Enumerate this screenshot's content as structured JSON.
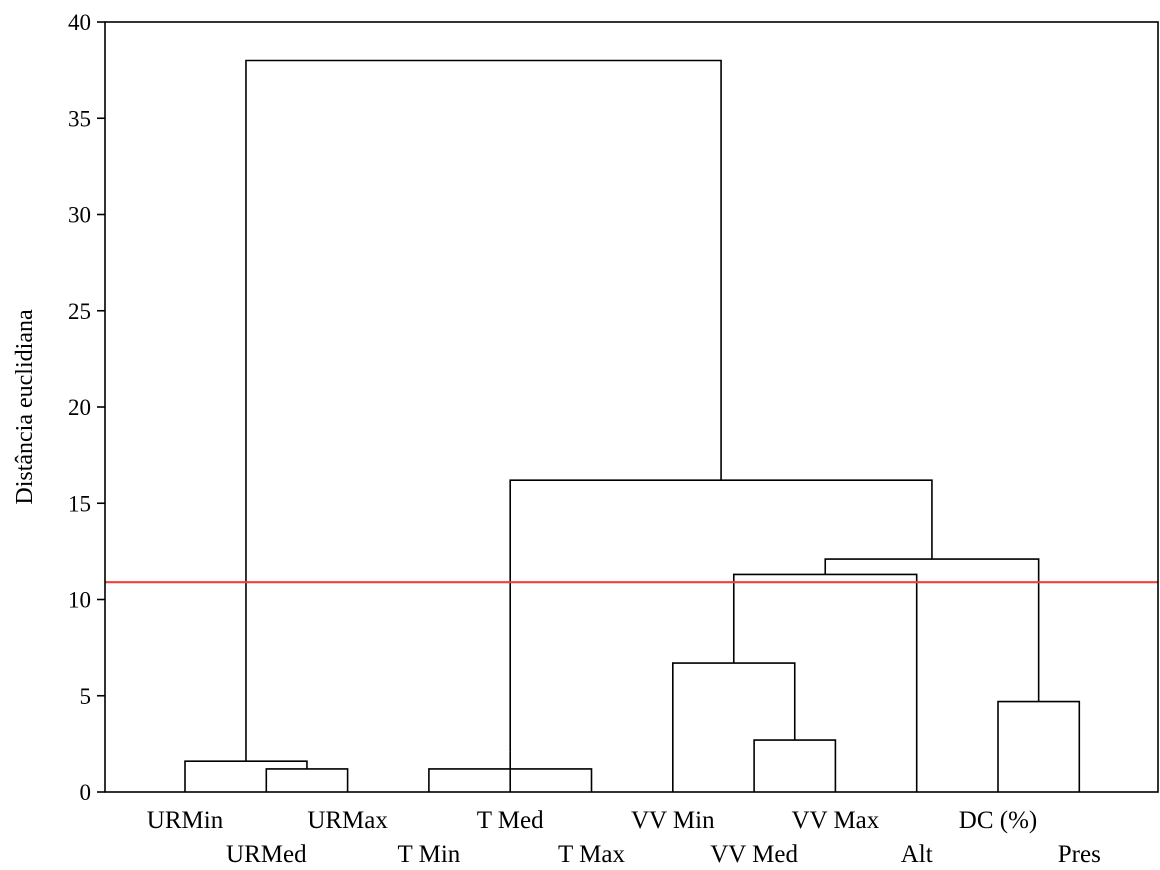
{
  "chart_data": {
    "type": "dendrogram",
    "ylabel": "Distância euclidiana",
    "ylim": [
      0,
      40
    ],
    "yticks": [
      0,
      5,
      10,
      15,
      20,
      25,
      30,
      35,
      40
    ],
    "leaves": [
      {
        "label": "URMin",
        "row": 0
      },
      {
        "label": "URMed",
        "row": 1
      },
      {
        "label": "URMax",
        "row": 0
      },
      {
        "label": "T Min",
        "row": 1
      },
      {
        "label": "T Med",
        "row": 0
      },
      {
        "label": "T Max",
        "row": 1
      },
      {
        "label": "VV Min",
        "row": 0
      },
      {
        "label": "VV Med",
        "row": 1
      },
      {
        "label": "VV Max",
        "row": 0
      },
      {
        "label": "Alt",
        "row": 1
      },
      {
        "label": "DC (%)",
        "row": 0
      },
      {
        "label": "Pres",
        "row": 1
      }
    ],
    "merges": [
      {
        "left": "URMed",
        "right": "URMax",
        "height": 1.2
      },
      {
        "left": "URMin",
        "right": 0,
        "height": 1.6
      },
      {
        "left": "T Max",
        "right": "T Min",
        "height": 1.2
      },
      {
        "left": "T Med",
        "right": 2,
        "height": 2.1
      },
      {
        "left": "VV Med",
        "right": "VV Max",
        "height": 2.7
      },
      {
        "left": "VV Min",
        "right": 4,
        "height": 6.7
      },
      {
        "left": "DC (%)",
        "right": "Pres",
        "height": 4.7
      },
      {
        "left": 5,
        "right": "Alt",
        "height": 11.3
      },
      {
        "left": 7,
        "right": 6,
        "height": 12.1
      },
      {
        "left": 3,
        "right": 8,
        "height": 16.2
      },
      {
        "left": 1,
        "right": 9,
        "height": 38.0
      }
    ],
    "cut_line": {
      "value": 10.9,
      "color": "#f04040"
    },
    "line_color": "#000000"
  }
}
